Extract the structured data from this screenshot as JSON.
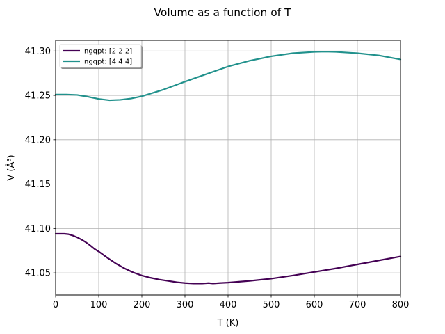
{
  "chart_data": {
    "type": "line",
    "title": "Volume as a function of T",
    "xlabel": "T (K)",
    "ylabel": "V (Å³)",
    "xlim": [
      0,
      800
    ],
    "ylim": [
      41.025,
      41.312
    ],
    "xticks": [
      0,
      100,
      200,
      300,
      400,
      500,
      600,
      700,
      800
    ],
    "xtick_labels": [
      "0",
      "100",
      "200",
      "300",
      "400",
      "500",
      "600",
      "700",
      "800"
    ],
    "yticks": [
      41.05,
      41.1,
      41.15,
      41.2,
      41.25,
      41.3
    ],
    "ytick_labels": [
      "41.05",
      "41.10",
      "41.15",
      "41.20",
      "41.25",
      "41.30"
    ],
    "grid": true,
    "legend_position": "top-left",
    "series": [
      {
        "name": "ngqpt: [2 2 2]",
        "color": "#440154",
        "x": [
          0,
          20,
          30,
          40,
          50,
          60,
          70,
          80,
          90,
          100,
          120,
          140,
          160,
          180,
          200,
          220,
          240,
          260,
          280,
          300,
          320,
          340,
          355,
          365,
          380,
          400,
          450,
          500,
          550,
          600,
          650,
          700,
          750,
          800
        ],
        "y": [
          41.094,
          41.094,
          41.0935,
          41.092,
          41.09,
          41.0875,
          41.0845,
          41.081,
          41.077,
          41.074,
          41.067,
          41.0605,
          41.055,
          41.0505,
          41.047,
          41.0445,
          41.0425,
          41.041,
          41.0395,
          41.0385,
          41.038,
          41.038,
          41.0385,
          41.038,
          41.0385,
          41.039,
          41.041,
          41.0435,
          41.047,
          41.051,
          41.055,
          41.0595,
          41.064,
          41.0685
        ]
      },
      {
        "name": "ngqpt: [4 4 4]",
        "color": "#21918c",
        "x": [
          0,
          25,
          50,
          75,
          100,
          125,
          150,
          175,
          200,
          250,
          300,
          350,
          400,
          450,
          500,
          550,
          600,
          625,
          650,
          700,
          750,
          800
        ],
        "y": [
          41.251,
          41.251,
          41.2505,
          41.2485,
          41.246,
          41.2445,
          41.245,
          41.2465,
          41.249,
          41.2565,
          41.2655,
          41.274,
          41.2825,
          41.289,
          41.294,
          41.2975,
          41.299,
          41.2993,
          41.299,
          41.2975,
          41.295,
          41.2905
        ]
      }
    ]
  }
}
